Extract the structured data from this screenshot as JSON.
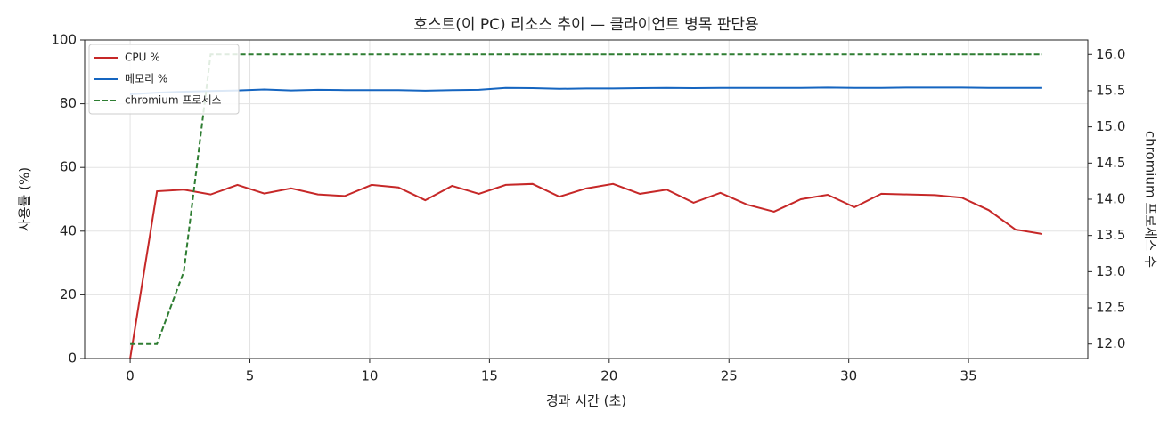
{
  "chart_data": {
    "type": "line",
    "title": "호스트(이 PC) 리소스 추이 — 클라이언트 병목 판단용",
    "xlabel": "경과 시간 (초)",
    "ylabel": "사용률 (%)",
    "y2label": "chromium 프로세스 수",
    "x": [
      0,
      1.12,
      2.24,
      3.36,
      4.48,
      5.6,
      6.72,
      7.84,
      8.96,
      10.08,
      11.2,
      12.32,
      13.44,
      14.56,
      15.68,
      16.8,
      17.92,
      19.04,
      20.16,
      21.28,
      22.4,
      23.52,
      24.64,
      25.76,
      26.88,
      28,
      29.12,
      30.24,
      31.36,
      32.48,
      33.6,
      34.72,
      35.84,
      36.96,
      38.08
    ],
    "series": [
      {
        "name": "CPU %",
        "color": "#c62828",
        "style": "solid",
        "axis": "y",
        "values": [
          0,
          52.5,
          53,
          51.5,
          54.5,
          51.8,
          53.4,
          51.5,
          51,
          54.5,
          53.7,
          49.7,
          54.2,
          51.7,
          54.5,
          54.8,
          50.8,
          53.4,
          54.8,
          51.7,
          53,
          48.9,
          52,
          48.3,
          46.1,
          50,
          51.4,
          47.5,
          51.7,
          51.5,
          51.3,
          50.5,
          46.6,
          40.5,
          39.1
        ]
      },
      {
        "name": "메모리 %",
        "color": "#1565c0",
        "style": "solid",
        "axis": "y",
        "values": [
          83,
          83.5,
          83.8,
          84,
          84.2,
          84.5,
          84.2,
          84.4,
          84.3,
          84.3,
          84.3,
          84.1,
          84.3,
          84.4,
          85,
          84.9,
          84.7,
          84.8,
          84.8,
          84.9,
          85,
          84.9,
          85,
          85,
          85,
          85,
          85.1,
          85,
          85,
          85.1,
          85.1,
          85.1,
          85,
          85,
          85
        ]
      },
      {
        "name": "chromium 프로세스",
        "color": "#2e7d32",
        "style": "dashed",
        "axis": "y2",
        "values": [
          12,
          12,
          13,
          16,
          16,
          16,
          16,
          16,
          16,
          16,
          16,
          16,
          16,
          16,
          16,
          16,
          16,
          16,
          16,
          16,
          16,
          16,
          16,
          16,
          16,
          16,
          16,
          16,
          16,
          16,
          16,
          16,
          16,
          16,
          16
        ]
      }
    ],
    "xlim": [
      -1.9,
      39.98
    ],
    "xticks": [
      0,
      5,
      10,
      15,
      20,
      25,
      30,
      35
    ],
    "ylim": [
      0,
      100
    ],
    "yticks": [
      0,
      20,
      40,
      60,
      80,
      100
    ],
    "y2lim": [
      11.8,
      16.2
    ],
    "y2ticks": [
      {
        "value": 12,
        "label": "12.0"
      },
      12.5,
      {
        "value": 13,
        "label": "13.0"
      },
      13.5,
      {
        "value": 14,
        "label": "14.0"
      },
      14.5,
      {
        "value": 15,
        "label": "15.0"
      },
      15.5,
      {
        "value": 16,
        "label": "16.0"
      }
    ],
    "grid": true,
    "legend": "upper-left"
  }
}
